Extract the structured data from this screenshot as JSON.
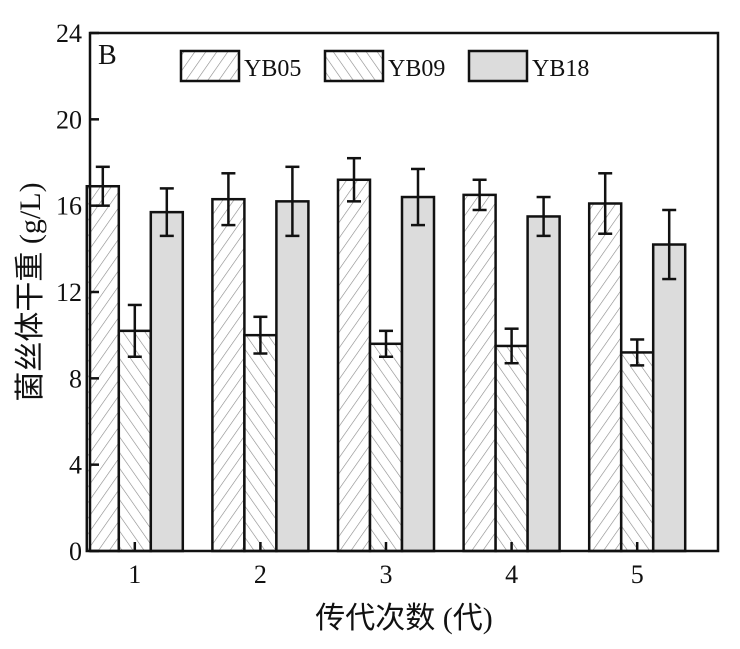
{
  "chart_data": {
    "type": "bar",
    "panel_label": "B",
    "title": "",
    "xlabel": "传代次数 (代)",
    "ylabel": "菌丝体干重 (g/L)",
    "categories": [
      "1",
      "2",
      "3",
      "4",
      "5"
    ],
    "ylim": [
      0,
      24
    ],
    "yticks": [
      "0",
      "4",
      "8",
      "12",
      "16",
      "20",
      "24"
    ],
    "legend_position": "top",
    "grid": false,
    "series": [
      {
        "name": "YB05",
        "pattern": "diagonal-forward",
        "values": [
          16.9,
          16.3,
          17.2,
          16.5,
          16.1
        ],
        "errors": [
          0.9,
          1.2,
          1.0,
          0.7,
          1.4
        ]
      },
      {
        "name": "YB09",
        "pattern": "diagonal-backward",
        "values": [
          10.2,
          10.0,
          9.6,
          9.5,
          9.2
        ],
        "errors": [
          1.2,
          0.85,
          0.6,
          0.8,
          0.6
        ]
      },
      {
        "name": "YB18",
        "pattern": "solid-gray",
        "values": [
          15.7,
          16.2,
          16.4,
          15.5,
          14.2
        ],
        "errors": [
          1.1,
          1.6,
          1.3,
          0.9,
          1.6
        ]
      }
    ],
    "colors": {
      "fill_gray": "#dcdcdc",
      "stroke": "#111111",
      "hatch": "#777777"
    }
  }
}
